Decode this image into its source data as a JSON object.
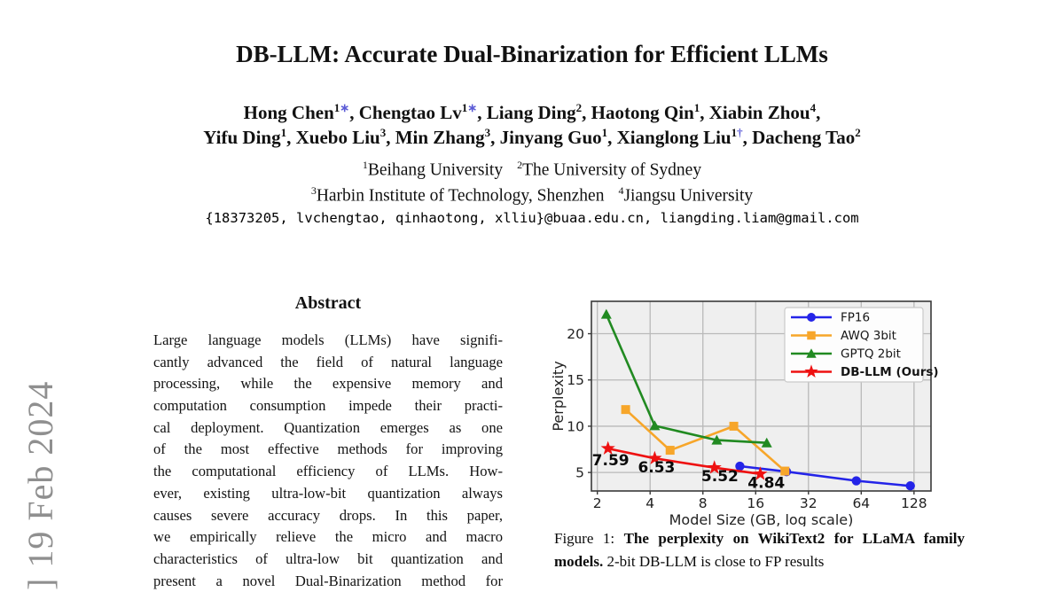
{
  "watermark": {
    "text": "] 19 Feb 2024"
  },
  "header": {
    "title": "DB-LLM: Accurate Dual-Binarization for Efficient LLMs",
    "mark_color": "#5b5bd6",
    "author_lines": [
      {
        "line_end": ",",
        "segments": [
          {
            "name": "Hong Chen",
            "sup": "1",
            "mark": "∗"
          },
          {
            "name": "Chengtao Lv",
            "sup": "1",
            "mark": "∗"
          },
          {
            "name": "Liang Ding",
            "sup": "2"
          },
          {
            "name": "Haotong Qin",
            "sup": "1"
          },
          {
            "name": "Xiabin Zhou",
            "sup": "4"
          }
        ]
      },
      {
        "line_end": "",
        "segments": [
          {
            "name": "Yifu Ding",
            "sup": "1"
          },
          {
            "name": "Xuebo Liu",
            "sup": "3"
          },
          {
            "name": "Min Zhang",
            "sup": "3"
          },
          {
            "name": "Jinyang Guo",
            "sup": "1"
          },
          {
            "name": "Xianglong Liu",
            "sup": "1",
            "mark": "†"
          },
          {
            "name": "Dacheng Tao",
            "sup": "2"
          }
        ]
      }
    ],
    "affiliation_lines": [
      [
        {
          "sup": "1",
          "text": "Beihang University"
        },
        {
          "sup": "2",
          "text": "The University of Sydney"
        }
      ],
      [
        {
          "sup": "3",
          "text": "Harbin Institute of Technology, Shenzhen"
        },
        {
          "sup": "4",
          "text": "Jiangsu University"
        }
      ]
    ],
    "emails": "{18373205, lvchengtao, qinhaotong, xlliu}@buaa.edu.cn, liangding.liam@gmail.com"
  },
  "abstract": {
    "heading": "Abstract",
    "lines": [
      "Large language models (LLMs) have signifi-",
      "cantly advanced the field of natural language",
      "processing, while the expensive memory and",
      "computation consumption impede their practi-",
      "cal deployment. Quantization emerges as one",
      "of the most effective methods for improving",
      "the computational efficiency of LLMs. How-",
      "ever, existing ultra-low-bit quantization always",
      "causes severe accuracy drops. In this paper,",
      "we empirically relieve the micro and macro",
      "characteristics of ultra-low bit quantization and",
      "present a novel Dual-Binarization method for"
    ]
  },
  "figure": {
    "caption_segments": [
      {
        "text": "Figure 1: ",
        "bold": false
      },
      {
        "text": "The perplexity on WikiText2 for LLaMA family models.",
        "bold": true
      },
      {
        "text": " 2-bit DB-LLM is close to FP results",
        "bold": false
      }
    ]
  },
  "chart_data": {
    "type": "line",
    "title": "",
    "xlabel": "Model Size (GB, log scale)",
    "ylabel": "Perplexity",
    "x_scale": "log2",
    "xlim": [
      1.85,
      160
    ],
    "ylim": [
      3,
      23.5
    ],
    "x_ticks": [
      2,
      4,
      8,
      16,
      32,
      64,
      128
    ],
    "y_ticks": [
      5,
      10,
      15,
      20
    ],
    "grid": true,
    "plot_bg": "#efefef",
    "grid_color": "#b9b9b9",
    "spine_color": "#3a3a3a",
    "legend_position": "upper right",
    "series": [
      {
        "name": "FP16",
        "color": "#2424e8",
        "marker": "circle",
        "bold_legend": false,
        "points": [
          [
            13,
            5.68
          ],
          [
            24,
            5.09
          ],
          [
            60,
            4.1
          ],
          [
            122,
            3.55
          ]
        ]
      },
      {
        "name": "AWQ 3bit",
        "color": "#f7a62a",
        "marker": "square",
        "bold_legend": false,
        "points": [
          [
            2.9,
            11.8
          ],
          [
            5.2,
            7.4
          ],
          [
            12,
            10.0
          ],
          [
            23.5,
            5.15
          ]
        ]
      },
      {
        "name": "GPTQ 2bit",
        "color": "#218a21",
        "marker": "triangle",
        "bold_legend": false,
        "points": [
          [
            2.25,
            22.1
          ],
          [
            4.25,
            10.05
          ],
          [
            9.6,
            8.5
          ],
          [
            18.5,
            8.2
          ]
        ]
      },
      {
        "name": "DB-LLM (Ours)",
        "color": "#ee1111",
        "marker": "star",
        "bold_legend": true,
        "points": [
          [
            2.3,
            7.59
          ],
          [
            4.25,
            6.53
          ],
          [
            9.3,
            5.52
          ],
          [
            17,
            4.84
          ]
        ]
      }
    ],
    "annotations": [
      {
        "text": "7.59",
        "x": 2.38,
        "y": 6.35
      },
      {
        "text": "6.53",
        "x": 4.35,
        "y": 5.6
      },
      {
        "text": "5.52",
        "x": 10.0,
        "y": 4.65
      },
      {
        "text": "4.84",
        "x": 18.4,
        "y": 3.9
      }
    ]
  }
}
